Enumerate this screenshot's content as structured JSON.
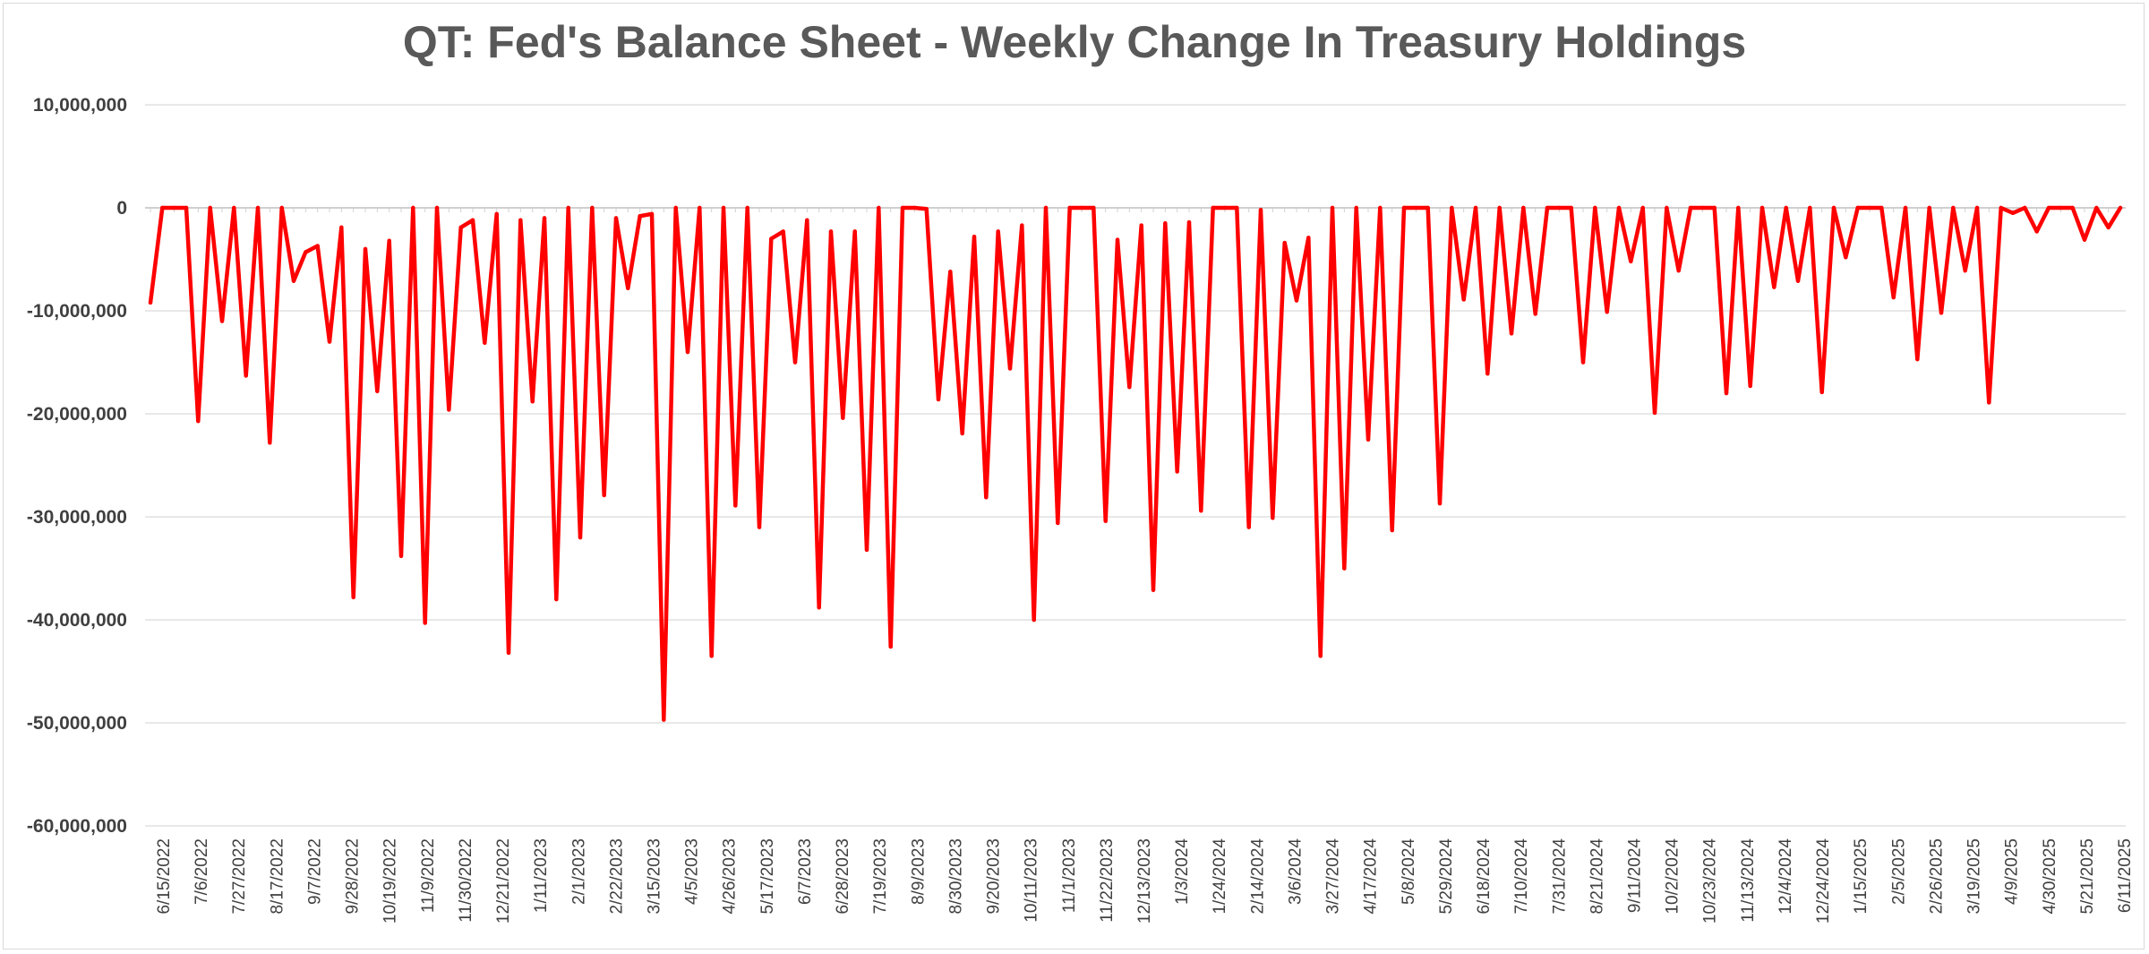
{
  "chart_data": {
    "type": "line",
    "title": "QT: Fed's Balance Sheet - Weekly Change In Treasury Holdings",
    "xlabel": "",
    "ylabel": "",
    "ylim": [
      -60000000,
      10000000
    ],
    "y_ticks": [
      "10,000,000",
      "0",
      "-10,000,000",
      "-20,000,000",
      "-30,000,000",
      "-40,000,000",
      "-50,000,000",
      "-60,000,000"
    ],
    "y_tick_values": [
      10000000,
      0,
      -10000000,
      -20000000,
      -30000000,
      -40000000,
      -50000000,
      -60000000
    ],
    "x_tick_labels": [
      "6/15/2022",
      "7/6/2022",
      "7/27/2022",
      "8/17/2022",
      "9/7/2022",
      "9/28/2022",
      "10/19/2022",
      "11/9/2022",
      "11/30/2022",
      "12/21/2022",
      "1/11/2023",
      "2/1/2023",
      "2/22/2023",
      "3/15/2023",
      "4/5/2023",
      "4/26/2023",
      "5/17/2023",
      "6/7/2023",
      "6/28/2023",
      "7/19/2023",
      "8/9/2023",
      "8/30/2023",
      "9/20/2023",
      "10/11/2023",
      "11/1/2023",
      "11/22/2023",
      "12/13/2023",
      "1/3/2024",
      "1/24/2024",
      "2/14/2024",
      "3/6/2024",
      "3/27/2024",
      "4/17/2024",
      "5/8/2024",
      "5/29/2024",
      "6/18/2024",
      "7/10/2024",
      "7/31/2024",
      "8/21/2024",
      "9/11/2024",
      "10/2/2024",
      "10/23/2024",
      "11/13/2024",
      "12/4/2024",
      "12/24/2024",
      "1/15/2025",
      "2/5/2025",
      "2/26/2025",
      "3/19/2025",
      "4/9/2025",
      "4/30/2025",
      "5/21/2025",
      "6/11/2025"
    ],
    "grid": true,
    "legend": "none",
    "series_color": "#ff0000",
    "series": [
      {
        "values": [
          -9200000,
          0,
          0,
          0,
          -20700000,
          0,
          -11000000,
          0,
          -16300000,
          0,
          -22800000,
          0,
          -7100000,
          -4300000,
          -3700000,
          -13000000,
          -1900000,
          -37800000,
          -4000000,
          -17800000,
          -3200000,
          -33800000,
          0,
          -40300000,
          0,
          -19600000,
          -1900000,
          -1200000,
          -13100000,
          -600000,
          -43200000,
          -1200000,
          -18800000,
          -1000000,
          -38000000,
          0,
          -32000000,
          0,
          -27900000,
          -1000000,
          -7800000,
          -800000,
          -600000,
          -49700000,
          0,
          -14000000,
          0,
          -43500000,
          0,
          -28900000,
          0,
          -31000000,
          -3000000,
          -2300000,
          -15000000,
          -1200000,
          -38800000,
          -2300000,
          -20400000,
          -2300000,
          -33200000,
          0,
          -42600000,
          0,
          0,
          -100000,
          -18600000,
          -6200000,
          -21900000,
          -2800000,
          -28100000,
          -2300000,
          -15600000,
          -1700000,
          -40000000,
          0,
          -30600000,
          0,
          0,
          0,
          -30400000,
          -3100000,
          -17400000,
          -1700000,
          -37100000,
          -1500000,
          -25600000,
          -1400000,
          -29400000,
          0,
          0,
          0,
          -31000000,
          -200000,
          -30100000,
          -3400000,
          -9000000,
          -2900000,
          -43500000,
          0,
          -35000000,
          0,
          -22500000,
          0,
          -31300000,
          0,
          0,
          0,
          -28700000,
          0,
          -8900000,
          0,
          -16100000,
          0,
          -12200000,
          0,
          -10300000,
          0,
          0,
          0,
          -15000000,
          0,
          -10100000,
          0,
          -5200000,
          0,
          -19900000,
          0,
          -6100000,
          0,
          0,
          0,
          -18000000,
          0,
          -17300000,
          0,
          -7700000,
          0,
          -7100000,
          0,
          -17900000,
          0,
          -4800000,
          0,
          0,
          0,
          -8700000,
          0,
          -14700000,
          0,
          -10200000,
          0,
          -6100000,
          0,
          -18900000,
          0,
          -500000,
          0,
          -2300000,
          0,
          0,
          0,
          -3100000,
          0,
          -1900000,
          0
        ]
      }
    ]
  }
}
